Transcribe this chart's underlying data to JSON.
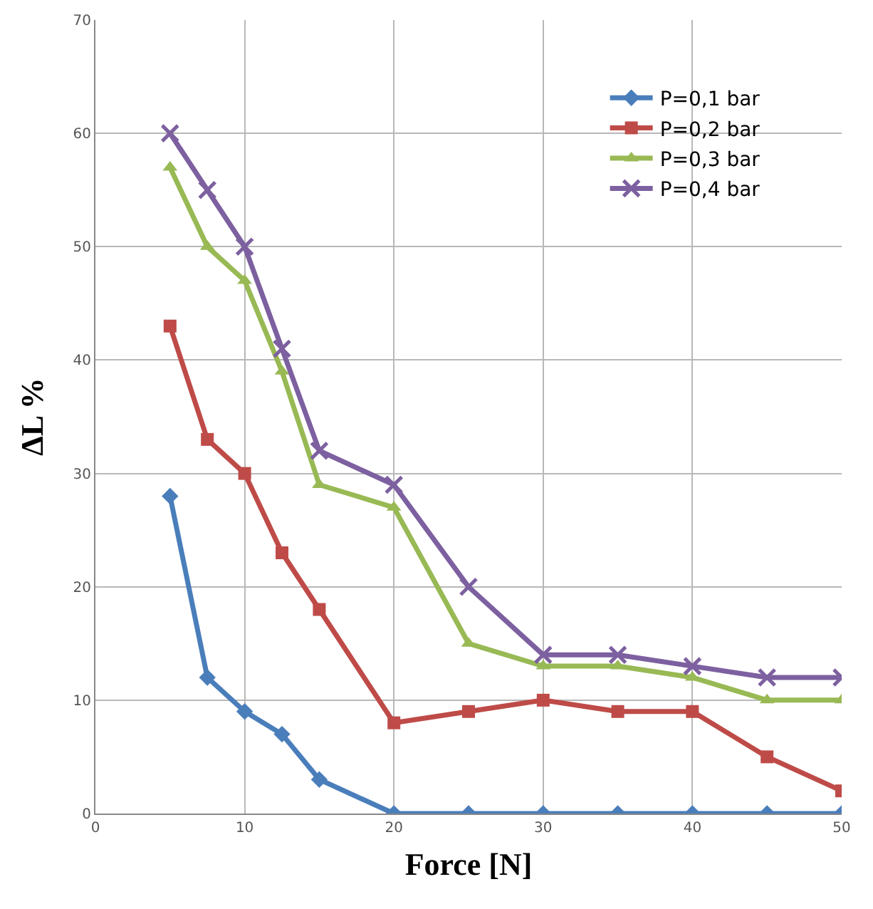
{
  "chart_data": {
    "type": "line",
    "xlabel": "Force [N]",
    "ylabel": "ΔL %",
    "x": [
      5,
      7.5,
      10,
      12.5,
      15,
      20,
      25,
      30,
      35,
      40,
      45,
      50
    ],
    "series": [
      {
        "name": "P=0,1 bar",
        "color": "#4a7ebb",
        "marker": "diamond",
        "values": [
          28,
          12,
          9,
          7,
          3,
          0,
          0,
          0,
          0,
          0,
          0,
          0
        ]
      },
      {
        "name": "P=0,2 bar",
        "color": "#be4b48",
        "marker": "square",
        "values": [
          43,
          33,
          30,
          23,
          18,
          8,
          9,
          10,
          9,
          9,
          5,
          2
        ]
      },
      {
        "name": "P=0,3 bar",
        "color": "#98b954",
        "marker": "triangle",
        "values": [
          57,
          50,
          47,
          39,
          29,
          27,
          15,
          13,
          13,
          12,
          10,
          10
        ]
      },
      {
        "name": "P=0,4 bar",
        "color": "#7d60a0",
        "marker": "cross",
        "values": [
          60,
          55,
          50,
          41,
          32,
          29,
          20,
          14,
          14,
          13,
          12,
          12
        ]
      }
    ],
    "xlim": [
      0,
      50
    ],
    "xticks": [
      0,
      10,
      20,
      30,
      40,
      50
    ],
    "ylim": [
      0,
      70
    ],
    "yticks": [
      0,
      10,
      20,
      30,
      40,
      50,
      60,
      70
    ],
    "grid": true,
    "legend": "top right",
    "line_style": "solid"
  }
}
